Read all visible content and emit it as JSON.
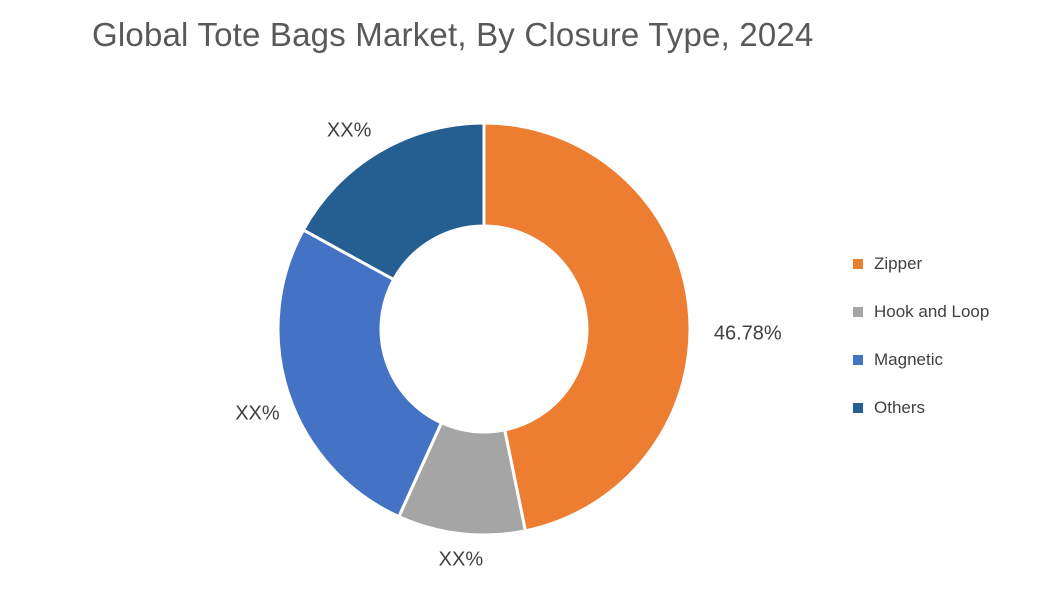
{
  "page": {
    "background_color": "#ffffff",
    "title_color": "#595959",
    "label_color": "#404040"
  },
  "chart": {
    "title": "Global Tote Bags Market, By Closure Type, 2024"
  },
  "chart_data": {
    "type": "pie",
    "subtype": "donut",
    "title": "Global Tote Bags Market, By Closure Type, 2024",
    "start_angle_deg": 0,
    "direction": "clockwise",
    "inner_radius_ratio": 0.5,
    "legend_position": "right",
    "legend_entries": [
      "Zipper",
      "Hook and Loop",
      "Magnetic",
      "Others"
    ],
    "series": [
      {
        "name": "Zipper",
        "label": "46.78%",
        "value_pct": 46.78,
        "color": "#ED7D31"
      },
      {
        "name": "Hook and Loop",
        "label": "XX%",
        "value_pct": 10.0,
        "color": "#A5A5A5"
      },
      {
        "name": "Magnetic",
        "label": "XX%",
        "value_pct": 26.2,
        "color": "#4472C4"
      },
      {
        "name": "Others",
        "label": "XX%",
        "value_pct": 17.02,
        "color": "#255E91"
      }
    ]
  }
}
